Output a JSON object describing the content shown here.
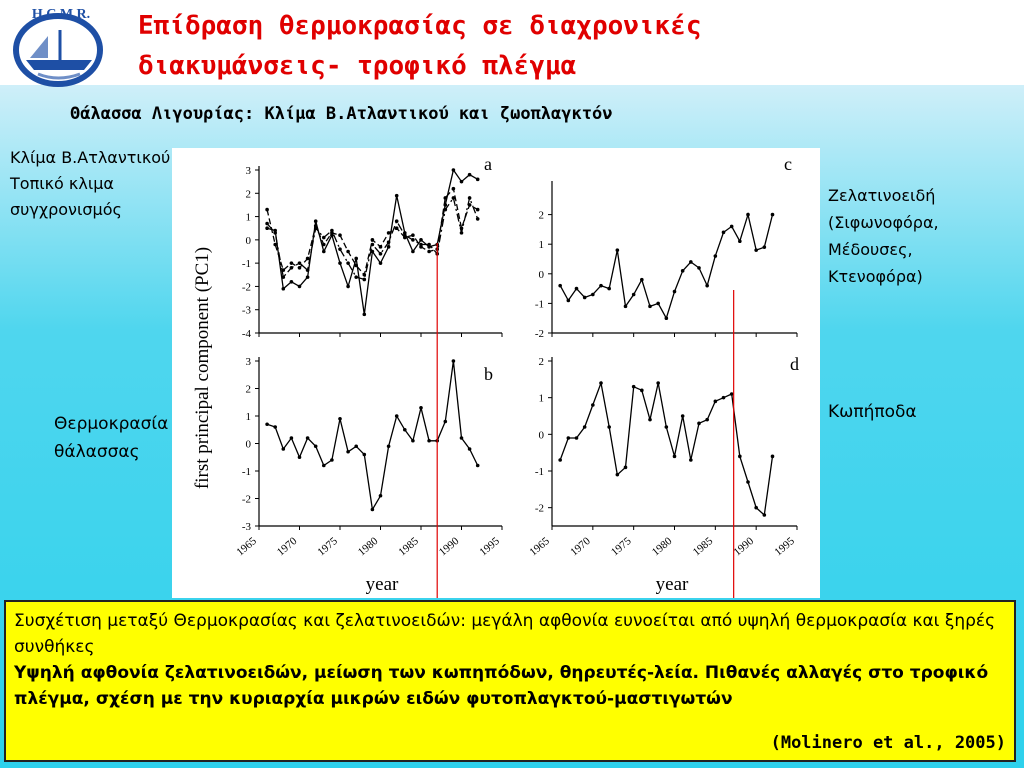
{
  "header": {
    "logo_text": "H.C.M.R.",
    "title_line1": "Επίδραση θερμοκρασίας σε διαχρονικές",
    "title_line2": "διακυμάνσεις- τροφικό πλέγμα",
    "subtitle": "Θάλασσα Λιγουρίας: Κλίμα Β.Ατλαντικού και ζωοπλαγκτόν"
  },
  "labels": {
    "left_a": [
      "Κλίμα Β.Ατλαντικού",
      "Τοπικό κλιμα",
      "συγχρονισμός"
    ],
    "left_b": [
      "Θερμοκρασία",
      "θάλασσας"
    ],
    "right_c": [
      "Ζελατινοειδή",
      "(Σιφωνοφόρα,",
      "Μέδουσες,",
      "Κτενοφόρα)"
    ],
    "right_d": [
      "Κωπήποδα"
    ]
  },
  "caption": {
    "line1": "Συσχέτιση μεταξύ Θερμοκρασίας και ζελατινοειδών: μεγάλη αφθονία ευνοείται από υψηλή θερμοκρασία και ξηρές συνθήκες",
    "line2": "Υψηλή αφθονία ζελατινοειδών, μείωση των κωπηπόδων, θηρευτές-λεία. Πιθανές αλλαγές στο τροφικό πλέγμα, σχέση με την κυριαρχία μικρών ειδών φυτοπλαγκτού-μαστιγωτών",
    "citation": "(Molinero et al., 2005)"
  },
  "chart_data": {
    "type": "line",
    "ylabel": "first principal component (PC1)",
    "xlabel": "year",
    "xlim": [
      1965,
      1995
    ],
    "x_ticks": [
      "1965",
      "1970",
      "1975",
      "1980",
      "1985",
      "1990",
      "1995"
    ],
    "vline_year": 1987,
    "colors": {
      "vline": "#e00000",
      "series": "#000000"
    },
    "panels": [
      {
        "label": "a",
        "ylim": [
          -4,
          3
        ],
        "y_ticks": [
          3,
          2,
          1,
          0,
          -1,
          -2,
          -3,
          -4
        ],
        "series": [
          {
            "style": "solid",
            "x": [
              1966,
              1967,
              1968,
              1969,
              1970,
              1971,
              1972,
              1973,
              1974,
              1975,
              1976,
              1977,
              1978,
              1979,
              1980,
              1981,
              1982,
              1983,
              1984,
              1985,
              1986,
              1987,
              1988,
              1989,
              1990,
              1991,
              1992
            ],
            "values": [
              0.5,
              0.4,
              -2.1,
              -1.8,
              -2.0,
              -1.6,
              0.8,
              -0.5,
              0.2,
              -1.0,
              -2.0,
              -0.8,
              -3.2,
              -0.5,
              -1.0,
              -0.3,
              1.9,
              0.3,
              -0.5,
              0.0,
              -0.3,
              -0.2,
              1.5,
              3.0,
              2.5,
              2.8,
              2.6
            ]
          },
          {
            "style": "dashed",
            "x": [
              1966,
              1967,
              1968,
              1969,
              1970,
              1971,
              1972,
              1973,
              1974,
              1975,
              1976,
              1977,
              1978,
              1979,
              1980,
              1981,
              1982,
              1983,
              1984,
              1985,
              1986,
              1987,
              1988,
              1989,
              1990,
              1991,
              1992
            ],
            "values": [
              1.3,
              -0.2,
              -1.3,
              -1.0,
              -1.2,
              -0.8,
              0.6,
              -0.2,
              0.3,
              0.2,
              -0.5,
              -1.1,
              -1.5,
              0.0,
              -0.3,
              0.3,
              0.5,
              0.1,
              0.2,
              -0.3,
              -0.5,
              -0.4,
              1.8,
              2.2,
              0.5,
              1.5,
              1.3
            ]
          },
          {
            "style": "dash-dot",
            "x": [
              1966,
              1967,
              1968,
              1969,
              1970,
              1971,
              1972,
              1973,
              1974,
              1975,
              1976,
              1977,
              1978,
              1979,
              1980,
              1981,
              1982,
              1983,
              1984,
              1985,
              1986,
              1987,
              1988,
              1989,
              1990,
              1991,
              1992
            ],
            "values": [
              0.7,
              0.3,
              -1.6,
              -1.2,
              -1.0,
              -1.3,
              0.5,
              0.1,
              0.4,
              -0.4,
              -1.0,
              -1.6,
              -1.7,
              -0.2,
              -0.6,
              -0.1,
              0.8,
              0.2,
              0.0,
              -0.2,
              -0.2,
              -0.6,
              1.3,
              1.8,
              0.3,
              1.8,
              0.9
            ]
          }
        ]
      },
      {
        "label": "b",
        "ylim": [
          -3,
          3
        ],
        "y_ticks": [
          3,
          2,
          1,
          0,
          -1,
          -2,
          -3
        ],
        "series": [
          {
            "style": "solid",
            "x": [
              1966,
              1967,
              1968,
              1969,
              1970,
              1971,
              1972,
              1973,
              1974,
              1975,
              1976,
              1977,
              1978,
              1979,
              1980,
              1981,
              1982,
              1983,
              1984,
              1985,
              1986,
              1987,
              1988,
              1989,
              1990,
              1991,
              1992
            ],
            "values": [
              0.7,
              0.6,
              -0.2,
              0.2,
              -0.5,
              0.2,
              -0.1,
              -0.8,
              -0.6,
              0.9,
              -0.3,
              -0.1,
              -0.4,
              -2.4,
              -1.9,
              -0.1,
              1.0,
              0.5,
              0.1,
              1.3,
              0.1,
              0.1,
              0.8,
              3.0,
              0.2,
              -0.2,
              -0.8
            ]
          }
        ]
      },
      {
        "label": "c",
        "ylim": [
          -2,
          3
        ],
        "y_ticks": [
          2,
          1,
          0,
          -1,
          -2
        ],
        "series": [
          {
            "style": "solid",
            "x": [
              1966,
              1967,
              1968,
              1969,
              1970,
              1971,
              1972,
              1973,
              1974,
              1975,
              1976,
              1977,
              1978,
              1979,
              1980,
              1981,
              1982,
              1983,
              1984,
              1985,
              1986,
              1987,
              1988,
              1989,
              1990,
              1991,
              1992
            ],
            "values": [
              -0.4,
              -0.9,
              -0.5,
              -0.8,
              -0.7,
              -0.4,
              -0.5,
              0.8,
              -1.1,
              -0.7,
              -0.2,
              -1.1,
              -1.0,
              -1.5,
              -0.6,
              0.1,
              0.4,
              0.2,
              -0.4,
              0.6,
              1.4,
              1.6,
              1.1,
              2.0,
              0.8,
              0.9,
              2.0
            ]
          }
        ]
      },
      {
        "label": "d",
        "ylim": [
          -2.5,
          2
        ],
        "y_ticks": [
          2,
          1,
          0,
          -1,
          -2
        ],
        "series": [
          {
            "style": "solid",
            "x": [
              1966,
              1967,
              1968,
              1969,
              1970,
              1971,
              1972,
              1973,
              1974,
              1975,
              1976,
              1977,
              1978,
              1979,
              1980,
              1981,
              1982,
              1983,
              1984,
              1985,
              1986,
              1987,
              1988,
              1989,
              1990,
              1991,
              1992
            ],
            "values": [
              -0.7,
              -0.1,
              -0.1,
              0.2,
              0.8,
              1.4,
              0.2,
              -1.1,
              -0.9,
              1.3,
              1.2,
              0.4,
              1.4,
              0.2,
              -0.6,
              0.5,
              -0.7,
              0.3,
              0.4,
              0.9,
              1.0,
              1.1,
              -0.6,
              -1.3,
              -2.0,
              -2.2,
              -0.6
            ]
          }
        ]
      }
    ]
  }
}
